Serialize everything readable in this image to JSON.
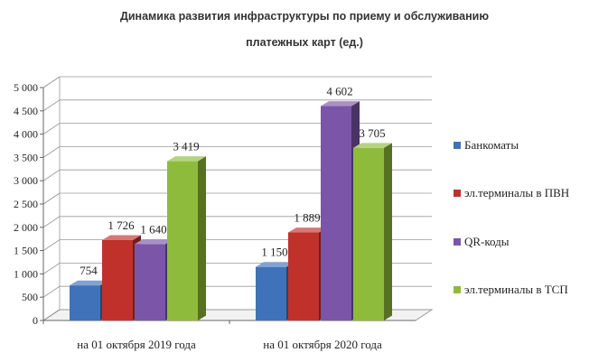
{
  "chart_data": {
    "type": "bar",
    "title_lines": [
      "Динамика развития инфраструктуры по приему и обслуживанию",
      "платежных карт (ед.)"
    ],
    "categories": [
      "на 01 октября 2019 года",
      "на 01 октября 2020 года"
    ],
    "series": [
      {
        "name": "Банкоматы",
        "values": [
          754,
          1150
        ],
        "labels": [
          "754",
          "1 150"
        ],
        "color": "#3f72b8"
      },
      {
        "name": "эл.терминалы в ПВН",
        "values": [
          1726,
          1889
        ],
        "labels": [
          "1 726",
          "1 889"
        ],
        "color": "#c0312c"
      },
      {
        "name": "QR-коды",
        "values": [
          1640,
          4602
        ],
        "labels": [
          "1 640",
          "4 602"
        ],
        "color": "#7a55a8"
      },
      {
        "name": "эл.терминалы в ТСП",
        "values": [
          3419,
          3705
        ],
        "labels": [
          "3 419",
          "3 705"
        ],
        "color": "#8fbb3c"
      }
    ],
    "ylim": [
      0,
      5000
    ],
    "yticks": [
      0,
      500,
      1000,
      1500,
      2000,
      2500,
      3000,
      3500,
      4000,
      4500,
      5000
    ],
    "ytick_labels": [
      "0",
      "500",
      "1 000",
      "1 500",
      "2 000",
      "2 500",
      "3 000",
      "3 500",
      "4 000",
      "4 500",
      "5 000"
    ],
    "grid": true,
    "legend_position": "right",
    "style": "3d-column"
  }
}
